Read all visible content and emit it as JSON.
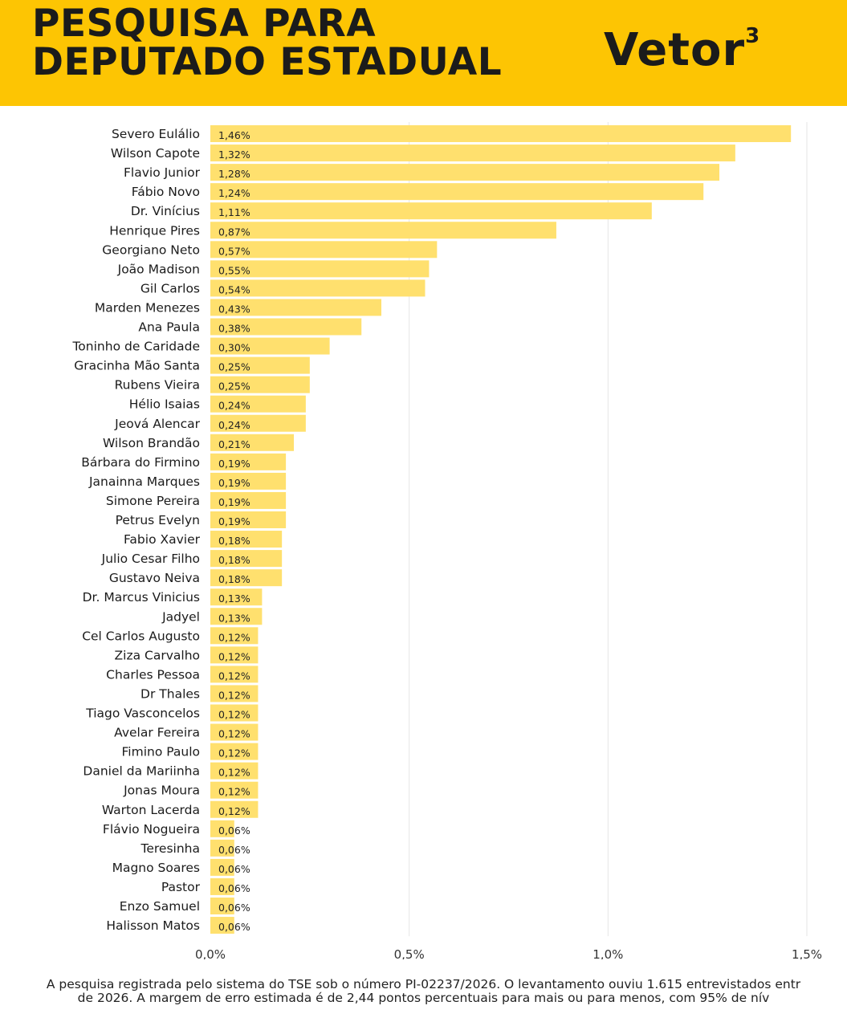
{
  "header": {
    "title_line1": "PESQUISA PARA",
    "title_line2": "DEPUTADO ESTADUAL",
    "brand": "Vetor",
    "brand_sup": "3"
  },
  "colors": {
    "header_bg": "#FDC503",
    "bar": "#FFE06E",
    "grid": "#e6e6e6",
    "text": "#1b1b1b"
  },
  "chart_data": {
    "type": "bar",
    "orientation": "horizontal",
    "xlim": [
      0,
      1.5
    ],
    "xticks": [
      "0,0%",
      "0,5%",
      "1,0%",
      "1,5%"
    ],
    "grid": true,
    "categories": [
      "Severo Eulálio",
      "Wilson Capote",
      "Flavio Junior",
      "Fábio Novo",
      "Dr. Vinícius",
      "Henrique Pires",
      "Georgiano Neto",
      "João Madison",
      "Gil Carlos",
      "Marden Menezes",
      "Ana Paula",
      "Toninho de Caridade",
      "Gracinha Mão Santa",
      "Rubens Vieira",
      "Hélio Isaias",
      "Jeová Alencar",
      "Wilson Brandão",
      "Bárbara do Firmino",
      "Janainna Marques",
      "Simone Pereira",
      "Petrus Evelyn",
      "Fabio Xavier",
      "Julio Cesar Filho",
      "Gustavo Neiva",
      "Dr. Marcus Vinicius",
      "Jadyel",
      "Cel Carlos Augusto",
      "Ziza Carvalho",
      "Charles Pessoa",
      "Dr Thales",
      "Tiago Vasconcelos",
      "Avelar Fereira",
      "Fimino Paulo",
      "Daniel da Mariinha",
      "Jonas Moura",
      "Warton Lacerda",
      "Flávio Nogueira",
      "Teresinha",
      "Magno Soares",
      "Pastor",
      "Enzo Samuel",
      "Halisson Matos"
    ],
    "values": [
      1.46,
      1.32,
      1.28,
      1.24,
      1.11,
      0.87,
      0.57,
      0.55,
      0.54,
      0.43,
      0.38,
      0.3,
      0.25,
      0.25,
      0.24,
      0.24,
      0.21,
      0.19,
      0.19,
      0.19,
      0.19,
      0.18,
      0.18,
      0.18,
      0.13,
      0.13,
      0.12,
      0.12,
      0.12,
      0.12,
      0.12,
      0.12,
      0.12,
      0.12,
      0.12,
      0.12,
      0.06,
      0.06,
      0.06,
      0.06,
      0.06,
      0.06
    ],
    "labels": [
      "1,46%",
      "1,32%",
      "1,28%",
      "1,24%",
      "1,11%",
      "0,87%",
      "0,57%",
      "0,55%",
      "0,54%",
      "0,43%",
      "0,38%",
      "0,30%",
      "0,25%",
      "0,25%",
      "0,24%",
      "0,24%",
      "0,21%",
      "0,19%",
      "0,19%",
      "0,19%",
      "0,19%",
      "0,18%",
      "0,18%",
      "0,18%",
      "0,13%",
      "0,13%",
      "0,12%",
      "0,12%",
      "0,12%",
      "0,12%",
      "0,12%",
      "0,12%",
      "0,12%",
      "0,12%",
      "0,12%",
      "0,12%",
      "0,06%",
      "0,06%",
      "0,06%",
      "0,06%",
      "0,06%",
      "0,06%"
    ]
  },
  "footnote": {
    "line1": "A pesquisa registrada pelo sistema do TSE sob o número PI-02237/2026. O levantamento ouviu 1.615 entrevistados entr",
    "line2": "de 2026. A margem de erro estimada é de 2,44 pontos percentuais para mais ou para menos, com 95% de nív"
  }
}
